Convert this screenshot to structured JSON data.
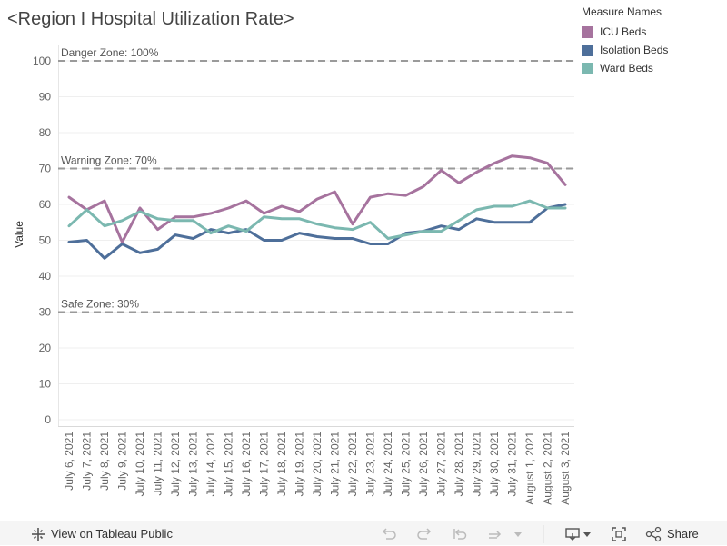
{
  "title": "<Region I Hospital Utilization Rate>",
  "legend": {
    "title": "Measure Names",
    "items": [
      {
        "label": "ICU Beds",
        "color": "#a6739e"
      },
      {
        "label": "Isolation Beds",
        "color": "#4e6f9a"
      },
      {
        "label": "Ward Beds",
        "color": "#7bb8b0"
      }
    ]
  },
  "chart_data": {
    "type": "line",
    "ylabel": "Value",
    "ylim": [
      0,
      100
    ],
    "yticks": [
      0,
      10,
      20,
      30,
      40,
      50,
      60,
      70,
      80,
      90,
      100
    ],
    "categories": [
      "July 6, 2021",
      "July 7, 2021",
      "July 8, 2021",
      "July 9, 2021",
      "July 10, 2021",
      "July 11, 2021",
      "July 12, 2021",
      "July 13, 2021",
      "July 14, 2021",
      "July 15, 2021",
      "July 16, 2021",
      "July 17, 2021",
      "July 18, 2021",
      "July 19, 2021",
      "July 20, 2021",
      "July 21, 2021",
      "July 22, 2021",
      "July 23, 2021",
      "July 24, 2021",
      "July 25, 2021",
      "July 26, 2021",
      "July 27, 2021",
      "July 28, 2021",
      "July 29, 2021",
      "July 30, 2021",
      "July 31, 2021",
      "August 1, 2021",
      "August 2, 2021",
      "August 3, 2021"
    ],
    "series": [
      {
        "name": "ICU Beds",
        "color": "#a6739e",
        "values": [
          62,
          58.5,
          61,
          49.5,
          59,
          53,
          56.5,
          56.5,
          57.5,
          59,
          61,
          57.5,
          59.5,
          58,
          61.5,
          63.5,
          54.5,
          62,
          63,
          62.5,
          65,
          69.5,
          66,
          69,
          71.5,
          73.5,
          73,
          71.5,
          65.5
        ]
      },
      {
        "name": "Isolation Beds",
        "color": "#4e6f9a",
        "values": [
          49.5,
          50,
          45,
          49,
          46.5,
          47.5,
          51.5,
          50.5,
          53,
          52,
          53,
          50,
          50,
          52,
          51,
          50.5,
          50.5,
          49,
          49,
          52,
          52.5,
          54,
          53,
          56,
          55,
          55,
          55,
          59,
          60
        ]
      },
      {
        "name": "Ward Beds",
        "color": "#7bb8b0",
        "values": [
          54,
          58.5,
          54,
          55.5,
          58,
          56,
          55.5,
          55.5,
          52,
          54,
          52.5,
          56.5,
          56,
          56,
          54.5,
          53.5,
          53,
          55,
          50.5,
          51.5,
          52.5,
          52.5,
          55.5,
          58.5,
          59.5,
          59.5,
          61,
          59,
          59
        ]
      }
    ],
    "reference_lines": [
      {
        "label": "Danger Zone: 100%",
        "value": 100
      },
      {
        "label": "Warning Zone: 70%",
        "value": 70
      },
      {
        "label": "Safe Zone: 30%",
        "value": 30
      }
    ],
    "grid": true
  },
  "footer": {
    "view_label": "View on Tableau Public",
    "share_label": "Share"
  }
}
